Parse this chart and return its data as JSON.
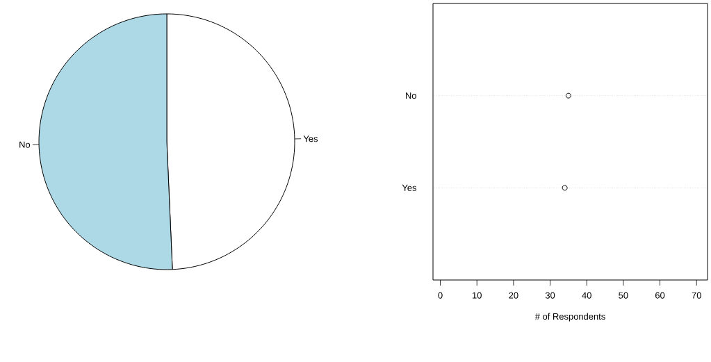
{
  "chart_data": [
    {
      "type": "pie",
      "categories": [
        "Yes",
        "No"
      ],
      "values": [
        49.3,
        50.7
      ],
      "colors": [
        "#ffffff",
        "#add8e6"
      ]
    },
    {
      "type": "scatter",
      "orientation": "horizontal",
      "categories": [
        "No",
        "Yes"
      ],
      "values": [
        35,
        34
      ],
      "color": "#000000",
      "marker": "circle",
      "grid": "y",
      "xlim": [
        -2,
        73
      ],
      "xticks": [
        0,
        10,
        20,
        30,
        40,
        50,
        60,
        70
      ],
      "xlabel": "# of Respondents"
    }
  ]
}
